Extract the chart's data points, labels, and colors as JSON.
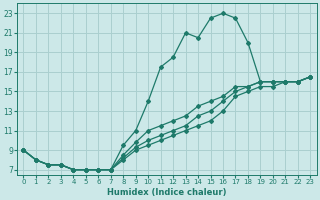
{
  "xlabel": "Humidex (Indice chaleur)",
  "ylabel": "",
  "xlim": [
    -0.5,
    23.5
  ],
  "ylim": [
    6.5,
    24
  ],
  "xticks": [
    0,
    1,
    2,
    3,
    4,
    5,
    6,
    7,
    8,
    9,
    10,
    11,
    12,
    13,
    14,
    15,
    16,
    17,
    18,
    19,
    20,
    21,
    22,
    23
  ],
  "yticks": [
    7,
    9,
    11,
    13,
    15,
    17,
    19,
    21,
    23
  ],
  "background_color": "#cce8e8",
  "grid_color": "#aacfcf",
  "line_color": "#1e7a6a",
  "lines": [
    {
      "x": [
        0,
        1,
        2,
        3,
        4,
        5,
        6,
        7,
        8,
        9,
        10,
        11,
        12,
        13,
        14,
        15,
        16,
        17,
        18,
        19,
        20,
        21,
        22,
        23
      ],
      "y": [
        9,
        8,
        7.5,
        7.5,
        7,
        7,
        7,
        7,
        9.5,
        11,
        14,
        17.5,
        18.5,
        21,
        20.5,
        22.5,
        23,
        22.5,
        20,
        16,
        16,
        16,
        16,
        16.5
      ]
    },
    {
      "x": [
        0,
        1,
        2,
        3,
        4,
        5,
        6,
        7,
        8,
        9,
        10,
        11,
        12,
        13,
        14,
        15,
        16,
        17,
        18,
        19,
        20,
        21,
        22,
        23
      ],
      "y": [
        9,
        8,
        7.5,
        7.5,
        7,
        7,
        7,
        7,
        8,
        9,
        9.5,
        10,
        10.5,
        11,
        11.5,
        12,
        13,
        14.5,
        15,
        15.5,
        15.5,
        16,
        16,
        16.5
      ]
    },
    {
      "x": [
        0,
        1,
        2,
        3,
        4,
        5,
        6,
        7,
        8,
        9,
        10,
        11,
        12,
        13,
        14,
        15,
        16,
        17,
        18,
        19,
        20,
        21,
        22,
        23
      ],
      "y": [
        9,
        8,
        7.5,
        7.5,
        7,
        7,
        7,
        7,
        8.2,
        9.3,
        10,
        10.5,
        11,
        11.5,
        12.5,
        13,
        14,
        15,
        15.5,
        16,
        16,
        16,
        16,
        16.5
      ]
    },
    {
      "x": [
        0,
        1,
        2,
        3,
        4,
        5,
        6,
        7,
        8,
        9,
        10,
        11,
        12,
        13,
        14,
        15,
        16,
        17,
        18,
        19,
        20,
        21,
        22,
        23
      ],
      "y": [
        9,
        8,
        7.5,
        7.5,
        7,
        7,
        7,
        7,
        8.5,
        9.8,
        11,
        11.5,
        12,
        12.5,
        13.5,
        14,
        14.5,
        15.5,
        15.5,
        16,
        16,
        16,
        16,
        16.5
      ]
    }
  ],
  "marker": "D",
  "markersize": 2.0,
  "linewidth": 0.9
}
